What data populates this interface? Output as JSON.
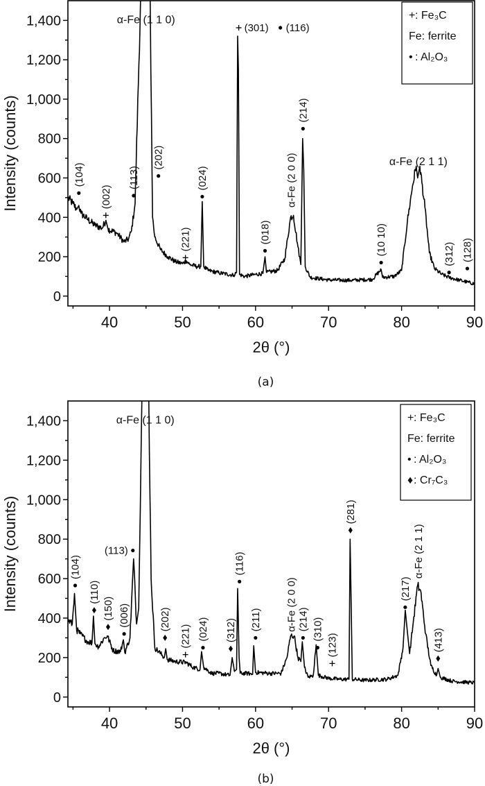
{
  "chart_data": [
    {
      "type": "line",
      "panel_label": "(a)",
      "xlabel": "2θ (°)",
      "ylabel": "Intensity (counts)",
      "xlim": [
        34.3,
        90
      ],
      "ylim": [
        -50,
        1500
      ],
      "xticks": [
        40,
        50,
        60,
        70,
        80,
        90
      ],
      "xtick_labels": [
        "40",
        "50",
        "60",
        "70",
        "80",
        "90"
      ],
      "yticks": [
        0,
        200,
        400,
        600,
        800,
        1000,
        1200,
        1400
      ],
      "ytick_labels": [
        "0",
        "200",
        "400",
        "600",
        "800",
        "1,000",
        "1,200",
        "1,400"
      ],
      "grid": false,
      "legend_position": "top-right",
      "legend": [
        {
          "symbol": "+",
          "text": ": Fe₃C"
        },
        {
          "symbol": "",
          "text": "Fe: ferrite"
        },
        {
          "symbol": "•",
          "text": ": Al₂O₃"
        }
      ],
      "series": [
        {
          "name": "pattern (a)",
          "points": [
            [
              34.3,
              500
            ],
            [
              35,
              470
            ],
            [
              35.5,
              440
            ],
            [
              35.8,
              460
            ],
            [
              36.1,
              420
            ],
            [
              37,
              390
            ],
            [
              38,
              360
            ],
            [
              39,
              345
            ],
            [
              39.5,
              385
            ],
            [
              39.8,
              340
            ],
            [
              41,
              320
            ],
            [
              42,
              275
            ],
            [
              42.6,
              290
            ],
            [
              43,
              330
            ],
            [
              43.5,
              470
            ],
            [
              44.4,
              1700
            ],
            [
              45.5,
              1700
            ],
            [
              45.9,
              400
            ],
            [
              46.2,
              300
            ],
            [
              47,
              235
            ],
            [
              48,
              200
            ],
            [
              49,
              175
            ],
            [
              50,
              165
            ],
            [
              50.5,
              180
            ],
            [
              51,
              160
            ],
            [
              52,
              150
            ],
            [
              52.5,
              150
            ],
            [
              52.7,
              480
            ],
            [
              52.9,
              150
            ],
            [
              53.5,
              130
            ],
            [
              55,
              118
            ],
            [
              57,
              106
            ],
            [
              57.4,
              120
            ],
            [
              57.55,
              1320
            ],
            [
              57.65,
              1150
            ],
            [
              57.8,
              110
            ],
            [
              58.5,
              100
            ],
            [
              60,
              110
            ],
            [
              61,
              115
            ],
            [
              61.3,
              200
            ],
            [
              61.5,
              120
            ],
            [
              63,
              130
            ],
            [
              64,
              190
            ],
            [
              64.8,
              400
            ],
            [
              65.2,
              410
            ],
            [
              65.8,
              250
            ],
            [
              66.2,
              160
            ],
            [
              66.45,
              800
            ],
            [
              66.6,
              640
            ],
            [
              66.8,
              150
            ],
            [
              67.5,
              95
            ],
            [
              70,
              82
            ],
            [
              73,
              80
            ],
            [
              76,
              85
            ],
            [
              77.2,
              135
            ],
            [
              77.4,
              95
            ],
            [
              79,
              100
            ],
            [
              80,
              130
            ],
            [
              80.8,
              380
            ],
            [
              81.5,
              560
            ],
            [
              82,
              660
            ],
            [
              82.2,
              600
            ],
            [
              82.5,
              660
            ],
            [
              83.2,
              450
            ],
            [
              83.8,
              220
            ],
            [
              84.5,
              140
            ],
            [
              85.5,
              110
            ],
            [
              86.5,
              95
            ],
            [
              88,
              80
            ],
            [
              90,
              62
            ]
          ]
        }
      ],
      "annotations": [
        {
          "x": 35.8,
          "y": 523,
          "marker": "dot",
          "label": "(104)",
          "orient": "vertical"
        },
        {
          "x": 39.5,
          "y": 410,
          "marker": "plus",
          "label": "(002)",
          "orient": "vertical"
        },
        {
          "x": 43.3,
          "y": 510,
          "marker": "dot",
          "label": "(113)",
          "orient": "vertical"
        },
        {
          "x": 45.0,
          "y": 1385,
          "marker": "",
          "label": "α-Fe (1 1 0)",
          "orient": "horizontal",
          "anchor": "middle"
        },
        {
          "x": 46.7,
          "y": 610,
          "marker": "dot",
          "label": "(202)",
          "orient": "vertical"
        },
        {
          "x": 50.4,
          "y": 195,
          "marker": "plus",
          "label": "(221)",
          "orient": "vertical"
        },
        {
          "x": 52.7,
          "y": 505,
          "marker": "dot",
          "label": "(024)",
          "orient": "vertical"
        },
        {
          "x": 57.7,
          "y": 1345,
          "marker": "plus",
          "label": "(301)",
          "orient": "horizontal",
          "anchor": "start"
        },
        {
          "x": 63.4,
          "y": 1345,
          "marker": "dot",
          "label": "(116)",
          "orient": "horizontal",
          "anchor": "start"
        },
        {
          "x": 61.3,
          "y": 230,
          "marker": "dot",
          "label": "(018)",
          "orient": "vertical"
        },
        {
          "x": 64.9,
          "y": 450,
          "marker": "",
          "label": "α-Fe (2 0 0)",
          "orient": "vertical"
        },
        {
          "x": 66.5,
          "y": 850,
          "marker": "dot",
          "label": "(214)",
          "orient": "vertical"
        },
        {
          "x": 77.2,
          "y": 170,
          "marker": "dot",
          "label": "(10 10)",
          "orient": "vertical"
        },
        {
          "x": 82.3,
          "y": 665,
          "marker": "",
          "label": "α-Fe (2 1 1)",
          "orient": "horizontal",
          "anchor": "middle"
        },
        {
          "x": 86.5,
          "y": 120,
          "marker": "dot",
          "label": "(312)",
          "orient": "vertical"
        },
        {
          "x": 89.0,
          "y": 140,
          "marker": "dot",
          "label": "(128)",
          "orient": "vertical"
        }
      ]
    },
    {
      "type": "line",
      "panel_label": "(b)",
      "xlabel": "2θ (°)",
      "ylabel": "Intensity (counts)",
      "xlim": [
        34.3,
        90
      ],
      "ylim": [
        -50,
        1500
      ],
      "xticks": [
        40,
        50,
        60,
        70,
        80,
        90
      ],
      "xtick_labels": [
        "40",
        "50",
        "60",
        "70",
        "80",
        "90"
      ],
      "yticks": [
        0,
        200,
        400,
        600,
        800,
        1000,
        1200,
        1400
      ],
      "ytick_labels": [
        "0",
        "200",
        "400",
        "600",
        "800",
        "1,000",
        "1,200",
        "1,400"
      ],
      "grid": false,
      "legend_position": "top-right",
      "legend": [
        {
          "symbol": "+",
          "text": ": Fe₃C"
        },
        {
          "symbol": "",
          "text": "Fe: ferrite"
        },
        {
          "symbol": "•",
          "text": ": Al₂O₃"
        },
        {
          "symbol": "♦",
          "text": ": Cr₇C₃"
        }
      ],
      "series": [
        {
          "name": "pattern (b)",
          "points": [
            [
              34.3,
              390
            ],
            [
              34.9,
              370
            ],
            [
              35.2,
              525
            ],
            [
              35.5,
              340
            ],
            [
              36,
              320
            ],
            [
              37,
              280
            ],
            [
              37.6,
              275
            ],
            [
              37.8,
              410
            ],
            [
              38,
              270
            ],
            [
              38.5,
              255
            ],
            [
              39.3,
              300
            ],
            [
              39.7,
              310
            ],
            [
              40.5,
              235
            ],
            [
              41.5,
              230
            ],
            [
              41.9,
              290
            ],
            [
              42.1,
              225
            ],
            [
              42.8,
              300
            ],
            [
              43.3,
              700
            ],
            [
              43.7,
              370
            ],
            [
              44.0,
              450
            ],
            [
              44.5,
              1700
            ],
            [
              45.3,
              1700
            ],
            [
              45.7,
              600
            ],
            [
              46.2,
              250
            ],
            [
              47,
              220
            ],
            [
              47.5,
              200
            ],
            [
              47.7,
              245
            ],
            [
              47.9,
              190
            ],
            [
              49,
              180
            ],
            [
              50.5,
              175
            ],
            [
              51.5,
              150
            ],
            [
              52.4,
              140
            ],
            [
              52.6,
              230
            ],
            [
              52.9,
              150
            ],
            [
              54,
              120
            ],
            [
              55,
              120
            ],
            [
              56.5,
              110
            ],
            [
              56.8,
              200
            ],
            [
              57.1,
              130
            ],
            [
              57.4,
              140
            ],
            [
              57.55,
              550
            ],
            [
              57.75,
              200
            ],
            [
              57.9,
              120
            ],
            [
              59,
              120
            ],
            [
              59.6,
              115
            ],
            [
              59.75,
              260
            ],
            [
              60,
              125
            ],
            [
              62,
              120
            ],
            [
              63.5,
              120
            ],
            [
              64.3,
              200
            ],
            [
              64.8,
              310
            ],
            [
              65.3,
              310
            ],
            [
              65.8,
              200
            ],
            [
              66.2,
              180
            ],
            [
              66.4,
              280
            ],
            [
              66.7,
              150
            ],
            [
              67.2,
              100
            ],
            [
              67.9,
              110
            ],
            [
              68.3,
              265
            ],
            [
              68.6,
              110
            ],
            [
              70,
              95
            ],
            [
              71.5,
              90
            ],
            [
              72.8,
              90
            ],
            [
              72.95,
              800
            ],
            [
              73.1,
              460
            ],
            [
              73.25,
              90
            ],
            [
              75,
              85
            ],
            [
              78,
              90
            ],
            [
              79.5,
              110
            ],
            [
              80.2,
              250
            ],
            [
              80.5,
              440
            ],
            [
              80.8,
              330
            ],
            [
              81.1,
              220
            ],
            [
              81.6,
              380
            ],
            [
              82.2,
              565
            ],
            [
              82.6,
              540
            ],
            [
              83.3,
              320
            ],
            [
              84,
              160
            ],
            [
              84.8,
              110
            ],
            [
              85.0,
              145
            ],
            [
              85.3,
              100
            ],
            [
              87,
              80
            ],
            [
              90,
              72
            ]
          ]
        }
      ],
      "annotations": [
        {
          "x": 35.3,
          "y": 565,
          "marker": "dot",
          "label": "(104)",
          "orient": "vertical"
        },
        {
          "x": 37.9,
          "y": 440,
          "marker": "diamond",
          "label": "(110)",
          "orient": "vertical"
        },
        {
          "x": 39.8,
          "y": 355,
          "marker": "diamond",
          "label": "(150)",
          "orient": "vertical"
        },
        {
          "x": 42.0,
          "y": 320,
          "marker": "dot",
          "label": "(006)",
          "orient": "vertical"
        },
        {
          "x": 43.2,
          "y": 725,
          "marker": "dot",
          "label": "(113)",
          "orient": "horizontal",
          "anchor": "end"
        },
        {
          "x": 44.9,
          "y": 1385,
          "marker": "",
          "label": "α-Fe (1 1 0)",
          "orient": "horizontal",
          "anchor": "middle"
        },
        {
          "x": 47.6,
          "y": 300,
          "marker": "diamond",
          "label": "(202)",
          "orient": "vertical"
        },
        {
          "x": 50.4,
          "y": 215,
          "marker": "plus",
          "label": "(221)",
          "orient": "vertical"
        },
        {
          "x": 52.8,
          "y": 250,
          "marker": "dot",
          "label": "(024)",
          "orient": "vertical"
        },
        {
          "x": 56.6,
          "y": 245,
          "marker": "diamond",
          "label": "(312)",
          "orient": "vertical"
        },
        {
          "x": 57.8,
          "y": 585,
          "marker": "dot",
          "label": "(116)",
          "orient": "vertical"
        },
        {
          "x": 60.0,
          "y": 300,
          "marker": "dot",
          "label": "(211)",
          "orient": "vertical"
        },
        {
          "x": 64.9,
          "y": 330,
          "marker": "",
          "label": "α-Fe (2 0 0)",
          "orient": "vertical"
        },
        {
          "x": 66.5,
          "y": 300,
          "marker": "dot",
          "label": "(214)",
          "orient": "vertical"
        },
        {
          "x": 68.5,
          "y": 250,
          "marker": "dot",
          "label": "(310)",
          "orient": "vertical"
        },
        {
          "x": 70.5,
          "y": 170,
          "marker": "plus",
          "label": "(123)",
          "orient": "vertical"
        },
        {
          "x": 73.0,
          "y": 845,
          "marker": "diamond",
          "label": "(281)",
          "orient": "vertical"
        },
        {
          "x": 80.5,
          "y": 455,
          "marker": "dot",
          "label": "(217)",
          "orient": "vertical"
        },
        {
          "x": 82.3,
          "y": 600,
          "marker": "",
          "label": "α-Fe (2 1 1)",
          "orient": "vertical"
        },
        {
          "x": 85.0,
          "y": 195,
          "marker": "diamond",
          "label": "(413)",
          "orient": "vertical"
        }
      ]
    }
  ]
}
